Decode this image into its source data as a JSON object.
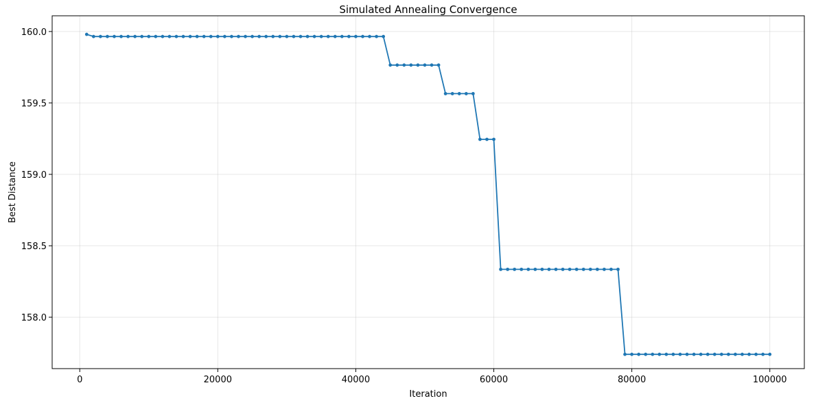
{
  "chart_data": {
    "type": "line",
    "title": "Simulated Annealing Convergence",
    "xlabel": "Iteration",
    "ylabel": "Best Distance",
    "xlim": [
      -4000,
      105000
    ],
    "ylim": [
      157.64,
      160.11
    ],
    "xticks": [
      0,
      20000,
      40000,
      60000,
      80000,
      100000
    ],
    "yticks": [
      158.0,
      158.5,
      159.0,
      159.5,
      160.0
    ],
    "ytick_labels": [
      "158.0",
      "158.5",
      "159.0",
      "159.5",
      "160.0"
    ],
    "grid": true,
    "color": "#1f77b4",
    "marker": "circle",
    "x": [
      1000,
      2000,
      3000,
      4000,
      5000,
      6000,
      7000,
      8000,
      9000,
      10000,
      11000,
      12000,
      13000,
      14000,
      15000,
      16000,
      17000,
      18000,
      19000,
      20000,
      21000,
      22000,
      23000,
      24000,
      25000,
      26000,
      27000,
      28000,
      29000,
      30000,
      31000,
      32000,
      33000,
      34000,
      35000,
      36000,
      37000,
      38000,
      39000,
      40000,
      41000,
      42000,
      43000,
      44000,
      45000,
      46000,
      47000,
      48000,
      49000,
      50000,
      51000,
      52000,
      53000,
      54000,
      55000,
      56000,
      57000,
      58000,
      59000,
      60000,
      61000,
      62000,
      63000,
      64000,
      65000,
      66000,
      67000,
      68000,
      69000,
      70000,
      71000,
      72000,
      73000,
      74000,
      75000,
      76000,
      77000,
      78000,
      79000,
      80000,
      81000,
      82000,
      83000,
      84000,
      85000,
      86000,
      87000,
      88000,
      89000,
      90000,
      91000,
      92000,
      93000,
      94000,
      95000,
      96000,
      97000,
      98000,
      99000,
      100000
    ],
    "y": [
      159.98,
      159.965,
      159.965,
      159.965,
      159.965,
      159.965,
      159.965,
      159.965,
      159.965,
      159.965,
      159.965,
      159.965,
      159.965,
      159.965,
      159.965,
      159.965,
      159.965,
      159.965,
      159.965,
      159.965,
      159.965,
      159.965,
      159.965,
      159.965,
      159.965,
      159.965,
      159.965,
      159.965,
      159.965,
      159.965,
      159.965,
      159.965,
      159.965,
      159.965,
      159.965,
      159.965,
      159.965,
      159.965,
      159.965,
      159.965,
      159.965,
      159.965,
      159.965,
      159.965,
      159.765,
      159.765,
      159.765,
      159.765,
      159.765,
      159.765,
      159.765,
      159.765,
      159.565,
      159.565,
      159.565,
      159.565,
      159.565,
      159.245,
      159.245,
      159.245,
      158.335,
      158.335,
      158.335,
      158.335,
      158.335,
      158.335,
      158.335,
      158.335,
      158.335,
      158.335,
      158.335,
      158.335,
      158.335,
      158.335,
      158.335,
      158.335,
      158.335,
      158.335,
      157.74,
      157.74,
      157.74,
      157.74,
      157.74,
      157.74,
      157.74,
      157.74,
      157.74,
      157.74,
      157.74,
      157.74,
      157.74,
      157.74,
      157.74,
      157.74,
      157.74,
      157.74,
      157.74,
      157.74,
      157.74,
      157.74
    ]
  }
}
